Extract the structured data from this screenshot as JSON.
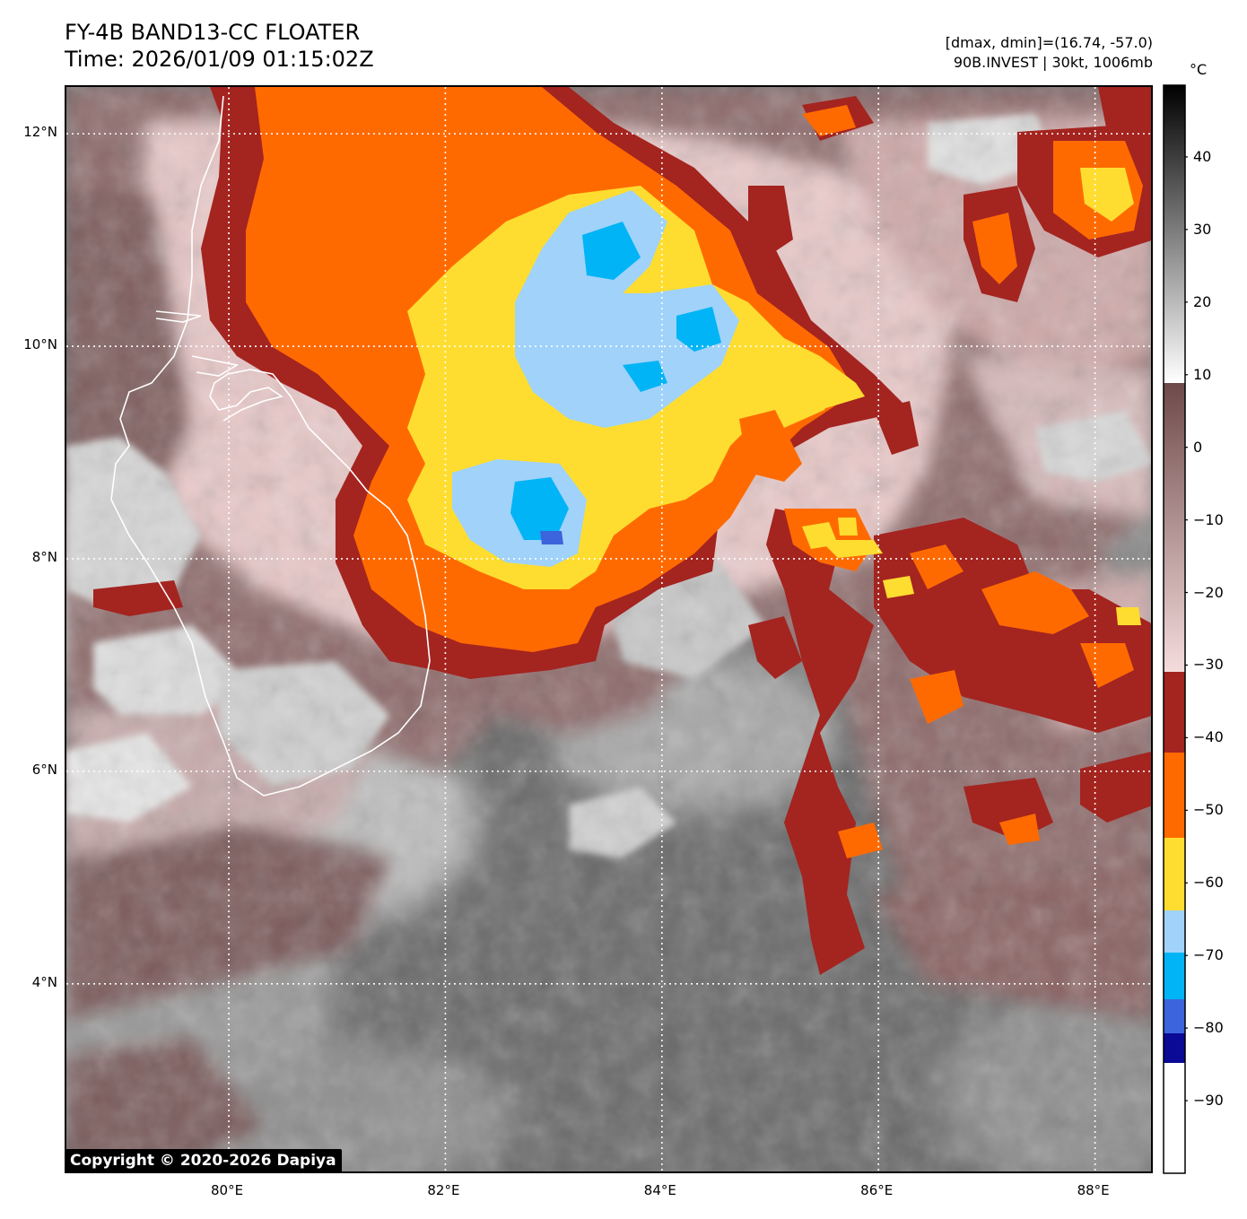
{
  "title": {
    "line1": "FY-4B BAND13-CC FLOATER",
    "line2": "Time: 2026/01/09 01:15:02Z"
  },
  "info": {
    "line1": "[dmax, dmin]=(16.74, -57.0)",
    "line2": "90B.INVEST | 30kt, 1006mb"
  },
  "copyright": "Copyright © 2020-2026 Dapiya",
  "map": {
    "lat_labels": [
      {
        "value": 12,
        "label": "12°N"
      },
      {
        "value": 10,
        "label": "10°N"
      },
      {
        "value": 8,
        "label": "8°N"
      },
      {
        "value": 6,
        "label": "6°N"
      },
      {
        "value": 4,
        "label": "4°N"
      }
    ],
    "lon_labels": [
      {
        "value": 80,
        "label": "80°E"
      },
      {
        "value": 82,
        "label": "82°E"
      },
      {
        "value": 84,
        "label": "84°E"
      },
      {
        "value": 86,
        "label": "86°E"
      },
      {
        "value": 88,
        "label": "88°E"
      }
    ],
    "lat_range": [
      2.2,
      12.44
    ],
    "lon_range": [
      78.5,
      88.55
    ],
    "gridlines": "dotted-white",
    "coastline_color": "#ffffff"
  },
  "colorbar": {
    "unit": "°C",
    "range": [
      -100,
      50
    ],
    "ticks": [
      "40",
      "30",
      "20",
      "10",
      "0",
      "−10",
      "−20",
      "−30",
      "−40",
      "−50",
      "−60",
      "−70",
      "−80",
      "−90"
    ],
    "tick_values": [
      40,
      30,
      20,
      10,
      0,
      -10,
      -20,
      -30,
      -40,
      -50,
      -60,
      -70,
      -80,
      -90
    ],
    "colors": {
      "white_black_gradient": [
        "#ffffff",
        "#000000"
      ],
      "brown_pink_gradient": [
        "#f5dcdc",
        "#6e4a4a"
      ],
      "dark_red": "#a42420",
      "orange": "#ff6a00",
      "yellow": "#fedd30",
      "light_blue": "#a0d2fa",
      "cyan": "#00b4f5",
      "royal_blue": "#3c64dc",
      "navy": "#0a0a96",
      "cold_white": "#ffffff"
    }
  }
}
